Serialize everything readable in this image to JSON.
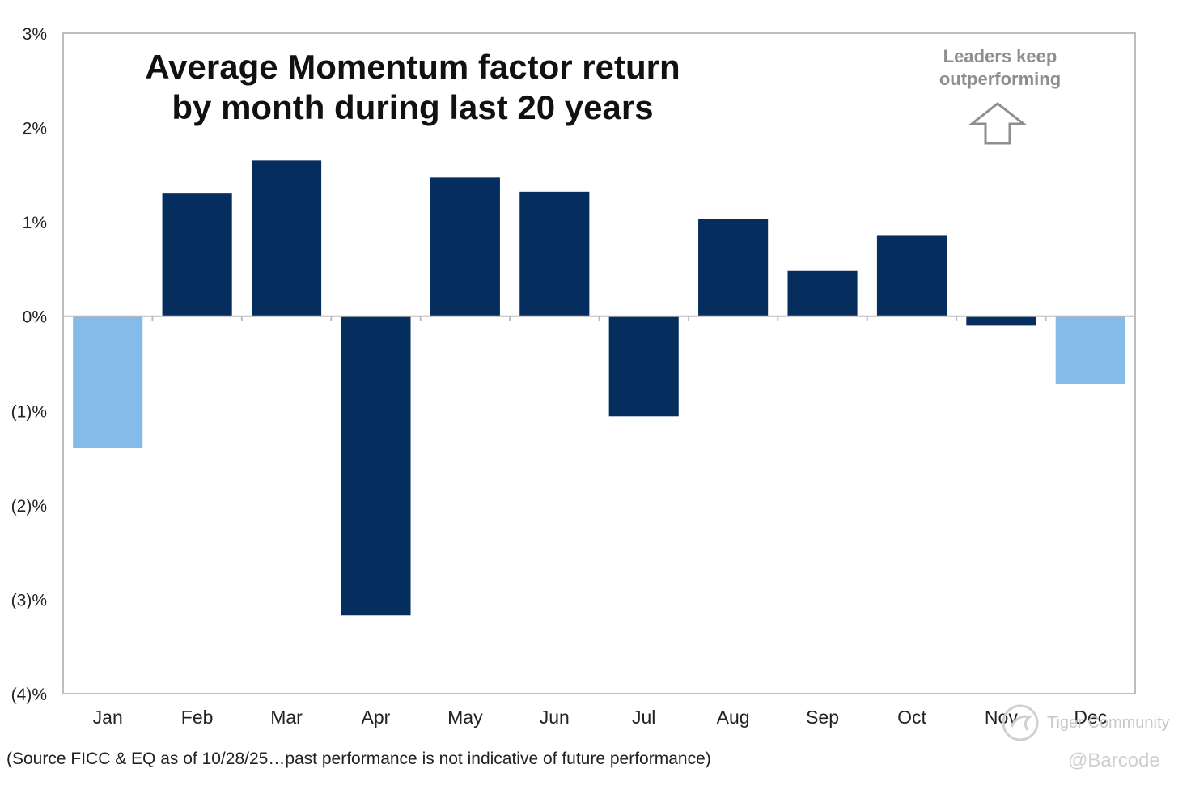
{
  "chart_data": {
    "type": "bar",
    "title": [
      "Average Momentum factor return",
      "by month during last 20 years"
    ],
    "categories": [
      "Jan",
      "Feb",
      "Mar",
      "Apr",
      "May",
      "Jun",
      "Jul",
      "Aug",
      "Sep",
      "Oct",
      "Nov",
      "Dec"
    ],
    "values": [
      -1.4,
      1.3,
      1.65,
      -3.17,
      1.47,
      1.32,
      -1.06,
      1.03,
      0.48,
      0.86,
      -0.1,
      -0.72
    ],
    "highlighted": [
      true,
      false,
      false,
      false,
      false,
      false,
      false,
      false,
      false,
      false,
      false,
      true
    ],
    "ylim": [
      -4,
      3
    ],
    "yticks": [
      3,
      2,
      1,
      0,
      -1,
      -2,
      -3,
      -4
    ],
    "ytick_labels": [
      "3%",
      "2%",
      "1%",
      "0%",
      "(1)%",
      "(2)%",
      "(3)%",
      "(4)%"
    ],
    "xlabel": "",
    "ylabel": "",
    "grid": false,
    "annotation": [
      "Leaders keep",
      "outperforming"
    ]
  },
  "colors": {
    "bar": "#052d5e",
    "bar_highlight": "#85bbe9",
    "axis": "#bdbdbd",
    "annotation": "#8e8e8e"
  },
  "footnote": "(Source FICC & EQ as of 10/28/25…past performance is not indicative of future performance)",
  "watermark": {
    "community": "Tiger Community",
    "handle": "@Barcode"
  }
}
